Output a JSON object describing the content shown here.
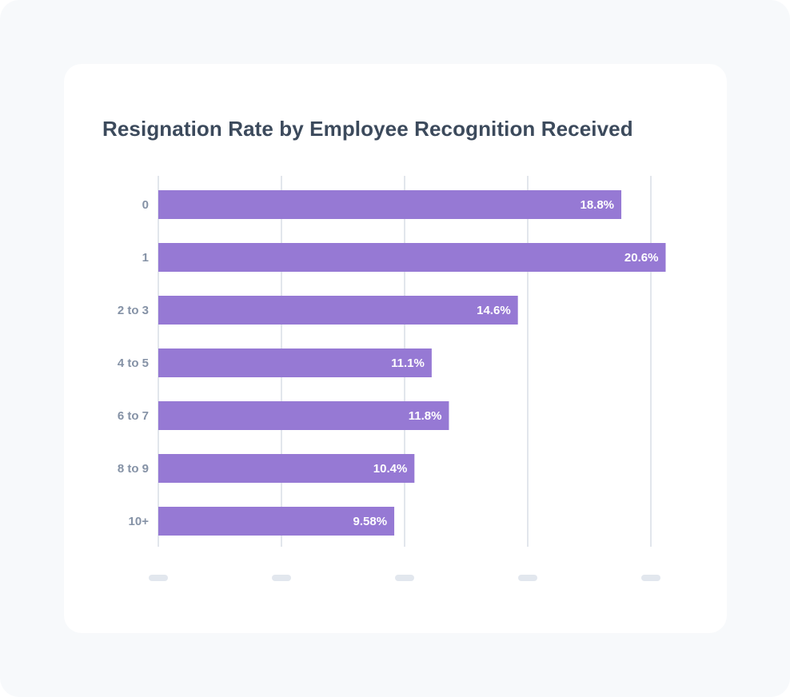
{
  "colors": {
    "bar": "#9679d4",
    "title": "#3c4a5c",
    "category_label": "#8592a6",
    "grid": "#e2e6ec"
  },
  "chart_data": {
    "type": "bar",
    "orientation": "horizontal",
    "title": "Resignation Rate by Employee Recognition Received",
    "xlabel": "",
    "ylabel": "",
    "categories": [
      "0",
      "1",
      "2 to 3",
      "4 to 5",
      "6 to 7",
      "8 to 9",
      "10+"
    ],
    "values": [
      18.8,
      20.6,
      14.6,
      11.1,
      11.8,
      10.4,
      9.58
    ],
    "value_labels": [
      "18.8%",
      "20.6%",
      "14.6%",
      "11.1%",
      "11.8%",
      "10.4%",
      "9.58%"
    ],
    "xlim": [
      0,
      20
    ],
    "x_ticks": [
      0,
      5,
      10,
      15,
      20
    ],
    "grid": "vertical",
    "legend": "none"
  }
}
